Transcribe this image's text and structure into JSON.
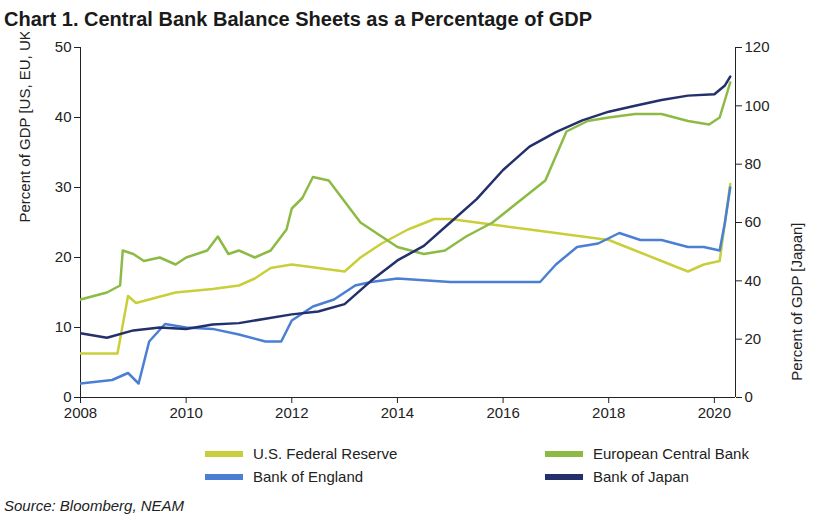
{
  "chart_data": {
    "type": "line",
    "title": "Chart 1. Central Bank Balance Sheets as a Percentage of GDP",
    "ylabel": "Percent of GDP [US, EU, UK]",
    "y2label": "Percent of GDP [Japan]",
    "source": "Source: Bloomberg, NEAM",
    "xlim": [
      2008,
      2020.4
    ],
    "xticks": [
      {
        "value": 2008,
        "label": "2008"
      },
      {
        "value": 2010,
        "label": "2010"
      },
      {
        "value": 2012,
        "label": "2012"
      },
      {
        "value": 2014,
        "label": "2014"
      },
      {
        "value": 2016,
        "label": "2016"
      },
      {
        "value": 2018,
        "label": "2018"
      },
      {
        "value": 2020,
        "label": "2020"
      }
    ],
    "ylim": [
      0,
      50
    ],
    "yticks": [
      0,
      10,
      20,
      30,
      40,
      50
    ],
    "y2lim": [
      0,
      120
    ],
    "y2ticks": [
      0,
      20,
      40,
      60,
      80,
      100,
      120
    ],
    "grid": false,
    "legend": "bottom",
    "series": [
      {
        "name": "U.S. Federal Reserve",
        "color": "#c9cf3a",
        "x": [
          2008,
          2008.7,
          2008.9,
          2009.05,
          2009.3,
          2009.8,
          2010.5,
          2011,
          2011.3,
          2011.6,
          2012,
          2012.5,
          2013,
          2013.3,
          2013.7,
          2014.2,
          2014.7,
          2015,
          2015.5,
          2016,
          2016.5,
          2017,
          2018,
          2018.5,
          2019,
          2019.5,
          2019.8,
          2020.1,
          2020.2,
          2020.3
        ],
        "values": [
          6.3,
          6.3,
          14.5,
          13.5,
          14,
          15,
          15.5,
          16,
          17,
          18.5,
          19,
          18.5,
          18,
          20,
          22,
          24,
          25.5,
          25.5,
          25,
          24.5,
          24,
          23.5,
          22.5,
          21,
          19.5,
          18,
          19,
          19.5,
          25,
          30.5
        ]
      },
      {
        "name": "European Central Bank",
        "color": "#8cba45",
        "x": [
          2008,
          2008.5,
          2008.75,
          2008.8,
          2009,
          2009.2,
          2009.5,
          2009.8,
          2010,
          2010.4,
          2010.6,
          2010.8,
          2011,
          2011.3,
          2011.6,
          2011.9,
          2012,
          2012.2,
          2012.4,
          2012.7,
          2013,
          2013.3,
          2013.7,
          2014,
          2014.5,
          2014.9,
          2015.3,
          2015.8,
          2016.3,
          2016.8,
          2017.2,
          2017.6,
          2018,
          2018.5,
          2019,
          2019.5,
          2019.9,
          2020.1,
          2020.3
        ],
        "values": [
          14,
          15,
          16,
          21,
          20.5,
          19.5,
          20,
          19,
          20,
          21,
          23,
          20.5,
          21,
          20,
          21,
          24,
          27,
          28.5,
          31.5,
          31,
          28,
          25,
          23,
          21.5,
          20.5,
          21,
          23,
          25,
          28,
          31,
          38,
          39.5,
          40,
          40.5,
          40.5,
          39.5,
          39,
          40,
          45
        ]
      },
      {
        "name": "Bank of England",
        "color": "#4a7fd4",
        "x": [
          2008,
          2008.6,
          2008.9,
          2009.1,
          2009.3,
          2009.6,
          2010,
          2010.5,
          2011,
          2011.5,
          2011.8,
          2012,
          2012.4,
          2012.8,
          2013.2,
          2013.5,
          2014,
          2015,
          2016,
          2016.7,
          2017,
          2017.4,
          2017.8,
          2018.2,
          2018.6,
          2019,
          2019.5,
          2019.8,
          2020.1,
          2020.2,
          2020.3
        ],
        "values": [
          2,
          2.5,
          3.5,
          2,
          8,
          10.5,
          10,
          9.8,
          9,
          8,
          8,
          11,
          13,
          14,
          16,
          16.5,
          17,
          16.5,
          16.5,
          16.5,
          19,
          21.5,
          22,
          23.5,
          22.5,
          22.5,
          21.5,
          21.5,
          21,
          25,
          30
        ]
      },
      {
        "name": "Bank of Japan",
        "color": "#23306b",
        "axis": "y2",
        "x": [
          2008,
          2008.5,
          2009,
          2009.5,
          2010,
          2010.5,
          2011,
          2011.5,
          2012,
          2012.5,
          2013,
          2013.5,
          2014,
          2014.5,
          2015,
          2015.5,
          2016,
          2016.5,
          2017,
          2017.5,
          2018,
          2018.5,
          2019,
          2019.5,
          2020,
          2020.2,
          2020.3
        ],
        "values": [
          22,
          20.5,
          23,
          24,
          23.5,
          25,
          25.5,
          27,
          28.5,
          29.5,
          32,
          40,
          47,
          52,
          60,
          68,
          78,
          86,
          91,
          95,
          98,
          100,
          102,
          103.5,
          104,
          107,
          110
        ]
      }
    ]
  }
}
